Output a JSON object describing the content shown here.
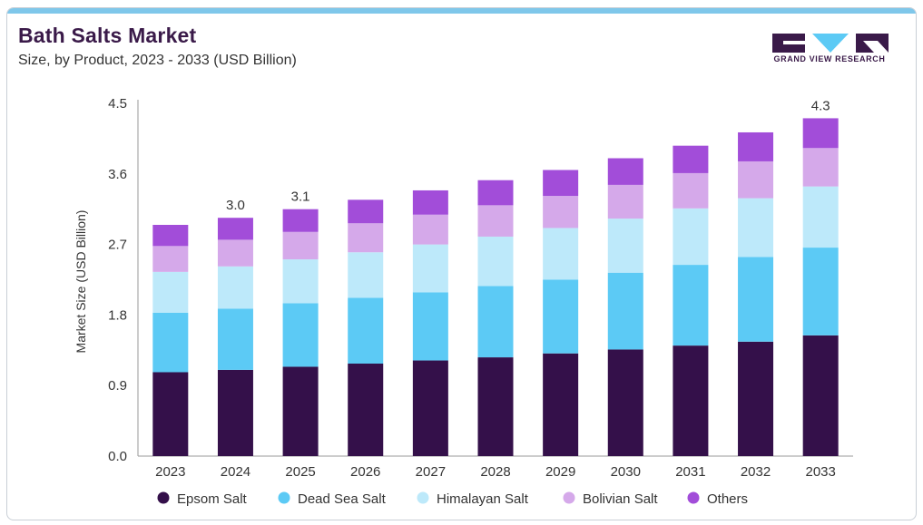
{
  "header": {
    "title": "Bath Salts Market",
    "subtitle": "Size, by Product, 2023 - 2033 (USD Billion)",
    "brand": "GRAND VIEW RESEARCH"
  },
  "colors": {
    "epsom": "#34104a",
    "dead_sea": "#5ccaf5",
    "himalayan": "#bde9fa",
    "bolivian": "#d5a9ea",
    "others": "#a24dd9",
    "topbar": "#7fc7ea",
    "brand": "#3a1a49"
  },
  "chart_data": {
    "type": "bar",
    "stacked": true,
    "categories": [
      "2023",
      "2024",
      "2025",
      "2026",
      "2027",
      "2028",
      "2029",
      "2030",
      "2031",
      "2032",
      "2033"
    ],
    "series": [
      {
        "name": "Epsom Salt",
        "color": "#34104a",
        "values": [
          1.07,
          1.1,
          1.14,
          1.18,
          1.22,
          1.26,
          1.31,
          1.36,
          1.41,
          1.46,
          1.54
        ]
      },
      {
        "name": "Dead Sea Salt",
        "color": "#5ccaf5",
        "values": [
          0.76,
          0.78,
          0.81,
          0.84,
          0.87,
          0.91,
          0.94,
          0.98,
          1.03,
          1.08,
          1.12
        ]
      },
      {
        "name": "Himalayan Salt",
        "color": "#bde9fa",
        "values": [
          0.52,
          0.54,
          0.56,
          0.58,
          0.61,
          0.63,
          0.66,
          0.69,
          0.72,
          0.75,
          0.78
        ]
      },
      {
        "name": "Bolivian Salt",
        "color": "#d5a9ea",
        "values": [
          0.33,
          0.34,
          0.35,
          0.37,
          0.38,
          0.4,
          0.41,
          0.43,
          0.45,
          0.47,
          0.49
        ]
      },
      {
        "name": "Others",
        "color": "#a24dd9",
        "values": [
          0.27,
          0.28,
          0.29,
          0.3,
          0.31,
          0.32,
          0.33,
          0.34,
          0.35,
          0.37,
          0.38
        ]
      }
    ],
    "data_labels": [
      {
        "category": "2024",
        "text": "3.0"
      },
      {
        "category": "2025",
        "text": "3.1"
      },
      {
        "category": "2033",
        "text": "4.3"
      }
    ],
    "ylabel": "Market Size (USD Billion)",
    "xlabel": "",
    "yticks": [
      "0.0",
      "0.9",
      "1.8",
      "2.7",
      "3.6",
      "4.5"
    ],
    "ylim": [
      0,
      4.5
    ],
    "grid": false,
    "legend_position": "bottom"
  }
}
